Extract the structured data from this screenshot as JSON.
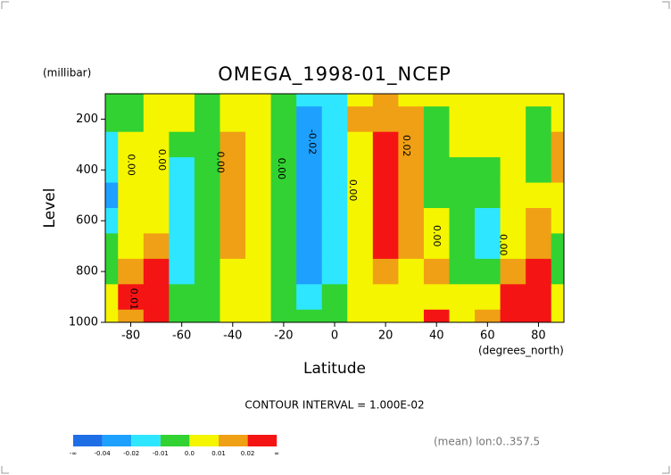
{
  "chart_data": {
    "type": "contour",
    "title": "OMEGA_1998-01_NCEP",
    "y_unit": "(millibar)",
    "ylabel": "Level",
    "xlabel": "Latitude",
    "x_unit": "(degrees_north)",
    "note": "CONTOUR INTERVAL = 1.000E-02",
    "footer": "(mean) lon:0..357.5",
    "xlim": [
      -90,
      90
    ],
    "ylim": [
      1000,
      100
    ],
    "xticks": [
      -80,
      -60,
      -40,
      -20,
      0,
      20,
      40,
      60,
      80
    ],
    "yticks": [
      200,
      400,
      600,
      800,
      1000
    ],
    "x": [
      -90,
      -80,
      -70,
      -60,
      -50,
      -40,
      -30,
      -20,
      -10,
      0,
      10,
      20,
      30,
      40,
      50,
      60,
      70,
      80,
      90
    ],
    "levels": [
      100,
      200,
      300,
      400,
      500,
      600,
      700,
      800,
      900,
      1000
    ],
    "values": [
      [
        -0.005,
        -0.005,
        -0.015,
        -0.02,
        -0.025,
        -0.015,
        -0.005,
        -0.005,
        0.005,
        0.005
      ],
      [
        -0.005,
        -0.005,
        0.005,
        0.005,
        0.005,
        0.005,
        0.005,
        0.015,
        0.02,
        0.015
      ],
      [
        0.005,
        0.005,
        0.005,
        0.005,
        0.005,
        0.005,
        0.012,
        0.025,
        0.03,
        0.03
      ],
      [
        0.005,
        0.005,
        -0.005,
        -0.012,
        -0.012,
        -0.012,
        -0.012,
        -0.012,
        -0.005,
        -0.005
      ],
      [
        -0.005,
        -0.005,
        -0.005,
        -0.005,
        -0.005,
        -0.008,
        -0.008,
        -0.008,
        -0.005,
        -0.005
      ],
      [
        0.005,
        0.005,
        0.012,
        0.012,
        0.012,
        0.012,
        0.012,
        0.005,
        0.005,
        0.004
      ],
      [
        0.005,
        0.005,
        0.005,
        0.005,
        0.005,
        0.005,
        0.005,
        0.005,
        0.005,
        0.005
      ],
      [
        -0.005,
        -0.005,
        -0.005,
        -0.005,
        -0.005,
        -0.005,
        -0.005,
        -0.005,
        -0.005,
        -0.005
      ],
      [
        -0.015,
        -0.025,
        -0.025,
        -0.025,
        -0.025,
        -0.025,
        -0.025,
        -0.022,
        -0.015,
        -0.005
      ],
      [
        -0.015,
        -0.015,
        -0.015,
        -0.015,
        -0.015,
        -0.015,
        -0.015,
        -0.015,
        -0.005,
        -0.005
      ],
      [
        0.005,
        0.012,
        0.005,
        0.008,
        0.008,
        0.008,
        0.008,
        0.008,
        0.005,
        0.002
      ],
      [
        0.015,
        0.015,
        0.025,
        0.025,
        0.025,
        0.025,
        0.022,
        0.015,
        0.005,
        0.005
      ],
      [
        0.005,
        0.015,
        0.015,
        0.015,
        0.015,
        0.015,
        0.015,
        0.008,
        0.008,
        0.008
      ],
      [
        0.005,
        -0.005,
        -0.005,
        -0.005,
        -0.005,
        0.003,
        0.003,
        0.012,
        0.005,
        0.022
      ],
      [
        0.005,
        0.005,
        0.005,
        -0.005,
        -0.005,
        -0.005,
        -0.005,
        -0.005,
        0.005,
        0.005
      ],
      [
        0.005,
        0.005,
        0.005,
        -0.005,
        -0.005,
        -0.012,
        -0.012,
        -0.005,
        0.005,
        0.015
      ],
      [
        0.005,
        0.005,
        0.005,
        0.005,
        0.005,
        0.005,
        0.005,
        0.015,
        0.025,
        0.025
      ],
      [
        0.005,
        -0.005,
        -0.005,
        -0.005,
        0.005,
        0.015,
        0.015,
        0.025,
        0.025,
        0.025
      ],
      [
        0.005,
        0.005,
        0.015,
        0.015,
        0.005,
        0.005,
        -0.005,
        -0.005,
        0.005,
        0.005
      ]
    ],
    "contour_labels": [
      {
        "text": "0.00",
        "x": -80,
        "y": 380
      },
      {
        "text": "0.00",
        "x": -68,
        "y": 360
      },
      {
        "text": "0.00",
        "x": -45,
        "y": 370
      },
      {
        "text": "0.00",
        "x": -21,
        "y": 395
      },
      {
        "text": "-0.02",
        "x": -9,
        "y": 290
      },
      {
        "text": "0.00",
        "x": 7,
        "y": 480
      },
      {
        "text": "0.02",
        "x": 28,
        "y": 305
      },
      {
        "text": "0.00",
        "x": 40,
        "y": 660
      },
      {
        "text": "0.00",
        "x": 66,
        "y": 695
      },
      {
        "text": "0.01",
        "x": -79,
        "y": 908
      }
    ],
    "colorbar": {
      "colors": [
        "#1e6ee6",
        "#1ea0ff",
        "#2ee6ff",
        "#32d232",
        "#f5f500",
        "#f0a014",
        "#f51414"
      ],
      "levels": [
        {
          "value": -0.04,
          "label": "-0.04"
        },
        {
          "value": -0.02,
          "label": "-0.02"
        },
        {
          "value": -0.01,
          "label": "-0.01"
        },
        {
          "value": 0,
          "label": "0.0"
        },
        {
          "value": 0.01,
          "label": "0.01"
        },
        {
          "value": 0.02,
          "label": "0.02"
        }
      ],
      "ends": [
        "-∞",
        "∞"
      ]
    }
  }
}
